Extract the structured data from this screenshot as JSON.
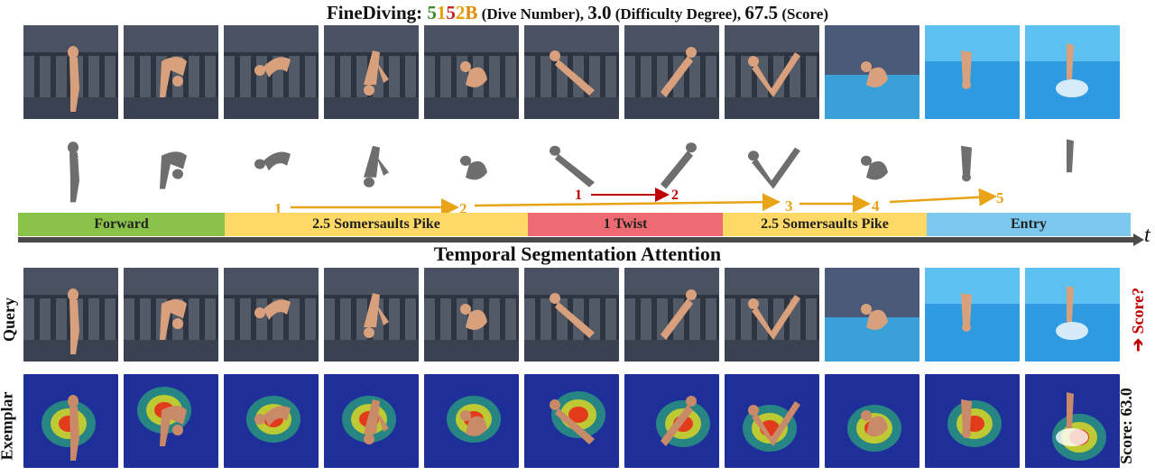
{
  "title": {
    "prefix": "FineDiving: ",
    "dive_number_digits": [
      "5",
      "1",
      "5",
      "2",
      "B"
    ],
    "dive_number_suffix": " (Dive Number), ",
    "difficulty": "3.0",
    "difficulty_suffix": " (Difficulty Degree), ",
    "score": "67.5",
    "score_suffix": " (Score)"
  },
  "colors": {
    "digit_green": "#3e8e2b",
    "digit_yellow": "#e6a000",
    "digit_red": "#c62828",
    "digit_orange": "#e08a00",
    "forward": "#8bc34a",
    "somersault": "#ffd966",
    "twist": "#ef6b73",
    "entry": "#7cc8ee",
    "arrow_orange": "#e8a317",
    "arrow_red": "#c00000"
  },
  "phases": [
    {
      "label": "Forward",
      "color": "#8bc34a"
    },
    {
      "label": "2.5 Somersaults Pike",
      "color": "#ffd966"
    },
    {
      "label": "1 Twist",
      "color": "#ef6b73"
    },
    {
      "label": "2.5 Somersaults Pike",
      "color": "#ffd966"
    },
    {
      "label": "Entry",
      "color": "#7cc8ee"
    }
  ],
  "step_numbers": [
    "1",
    "2",
    "1",
    "2",
    "3",
    "4",
    "5"
  ],
  "axis_label": "t",
  "section_title": "Temporal Segmentation Attention",
  "row_labels": {
    "query": "Query",
    "exemplar": "Exemplar",
    "query_score": "Score?",
    "exemplar_score": "Score: 63.0"
  },
  "frames": [
    {
      "scene": "stadium",
      "pose": "stand"
    },
    {
      "scene": "stadium",
      "pose": "bend"
    },
    {
      "scene": "stadium",
      "pose": "tuck"
    },
    {
      "scene": "stadium",
      "pose": "pike"
    },
    {
      "scene": "stadium",
      "pose": "ball"
    },
    {
      "scene": "stadium",
      "pose": "twist"
    },
    {
      "scene": "stadium",
      "pose": "twist2"
    },
    {
      "scene": "stadium",
      "pose": "vshape"
    },
    {
      "scene": "pool",
      "pose": "ball"
    },
    {
      "scene": "water",
      "pose": "entry"
    },
    {
      "scene": "water",
      "pose": "splash"
    }
  ]
}
